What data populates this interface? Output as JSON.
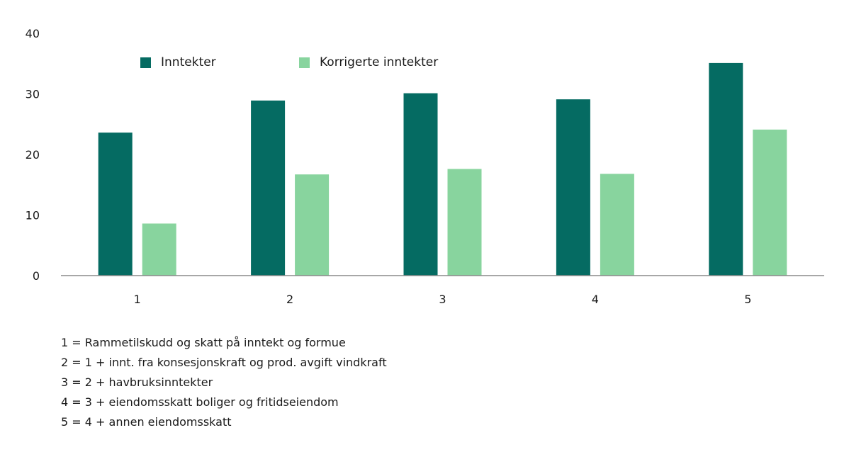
{
  "chart_data": {
    "type": "bar",
    "categories": [
      "1",
      "2",
      "3",
      "4",
      "5"
    ],
    "series": [
      {
        "name": "Inntekter",
        "color": "#056b62",
        "values": [
          23.6,
          28.9,
          30.1,
          29.1,
          35.1
        ]
      },
      {
        "name": "Korrigerte inntekter",
        "color": "#88d49e",
        "values": [
          8.6,
          16.7,
          17.6,
          16.8,
          24.1
        ]
      }
    ],
    "y_ticks": [
      0,
      10,
      20,
      30,
      40
    ],
    "ylim": [
      0,
      40
    ],
    "grid": false,
    "legend_position": "top-left"
  },
  "notes": [
    "1 = Rammetilskudd og skatt på inntekt og formue",
    "2 = 1 + innt. fra konsesjonskraft og prod. avgift vindkraft",
    "3 = 2 + havbruksinntekter",
    "4 = 3 + eiendomsskatt boliger og fritidseiendom",
    "5 = 4 + annen eiendomsskatt"
  ]
}
